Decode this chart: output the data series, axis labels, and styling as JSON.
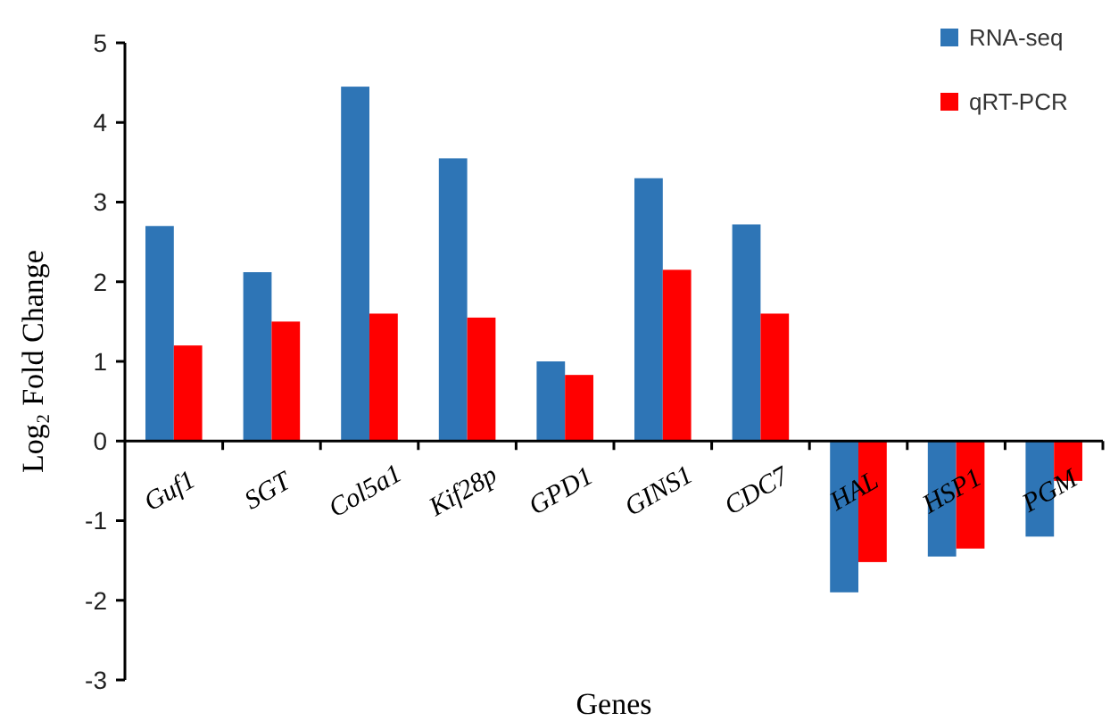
{
  "chart_data": {
    "type": "bar",
    "xlabel": "Genes",
    "ylabel": "Log₂ Fold Change",
    "categories": [
      "Guf1",
      "SGT",
      "Col5a1",
      "Kif28p",
      "GPD1",
      "GINS1",
      "CDC7",
      "HAL",
      "HSP1",
      "PGM"
    ],
    "series": [
      {
        "name": "RNA-seq",
        "color": "#2e75b6",
        "values": [
          2.7,
          2.12,
          4.45,
          3.55,
          1.0,
          3.3,
          2.72,
          -1.9,
          -1.45,
          -1.2
        ]
      },
      {
        "name": "qRT-PCR",
        "color": "#ff0000",
        "values": [
          1.2,
          1.5,
          1.6,
          1.55,
          0.83,
          2.15,
          1.6,
          -1.52,
          -1.35,
          -0.5
        ]
      }
    ],
    "ylim": [
      -3,
      5
    ],
    "yticks": [
      -3,
      -2,
      -1,
      0,
      1,
      2,
      3,
      4,
      5
    ],
    "grid": false,
    "legend": "top right"
  }
}
